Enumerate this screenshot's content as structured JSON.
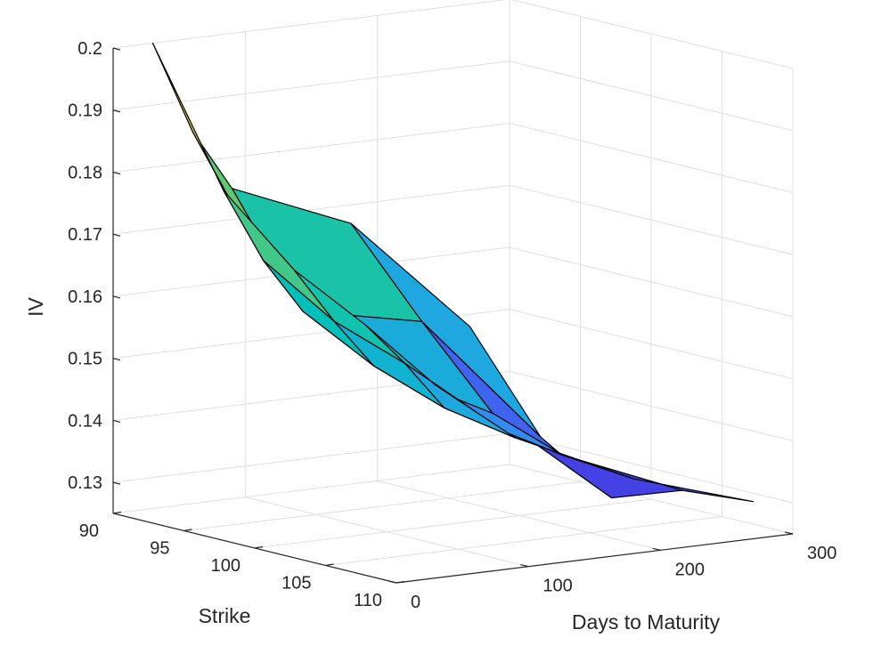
{
  "chart_data": {
    "type": "surface",
    "title": "",
    "xlabel": "Days to Maturity",
    "ylabel": "Strike",
    "zlabel": "IV",
    "x_ticks": [
      "0",
      "100",
      "200",
      "300"
    ],
    "y_ticks": [
      "90",
      "95",
      "100",
      "105",
      "110"
    ],
    "z_ticks": [
      "0.13",
      "0.14",
      "0.15",
      "0.16",
      "0.17",
      "0.18",
      "0.19",
      "0.2"
    ],
    "xlim": [
      0,
      300
    ],
    "ylim": [
      90,
      110
    ],
    "zlim": [
      0.125,
      0.2
    ],
    "grid": true,
    "colormap": [
      "#3e26a8",
      "#4443e6",
      "#3b7ff6",
      "#1ea9df",
      "#00bfbc",
      "#2ec797",
      "#8bc74c",
      "#e2c12d",
      "#fdf424",
      "#f9fb0e"
    ],
    "surface": {
      "days": [
        30,
        60,
        90,
        180,
        270
      ],
      "strikes": [
        90,
        95,
        100,
        105,
        110
      ],
      "iv": [
        [
          0.2,
          0.185,
          0.175,
          0.167,
          0.148
        ],
        [
          0.179,
          0.167,
          0.158,
          0.154,
          0.133
        ],
        [
          0.169,
          0.16,
          0.152,
          0.142,
          0.126
        ],
        [
          0.163,
          0.156,
          0.148,
          0.138,
          0.13
        ],
        [
          0.156,
          0.151,
          0.146,
          0.137,
          0.131
        ]
      ]
    }
  }
}
